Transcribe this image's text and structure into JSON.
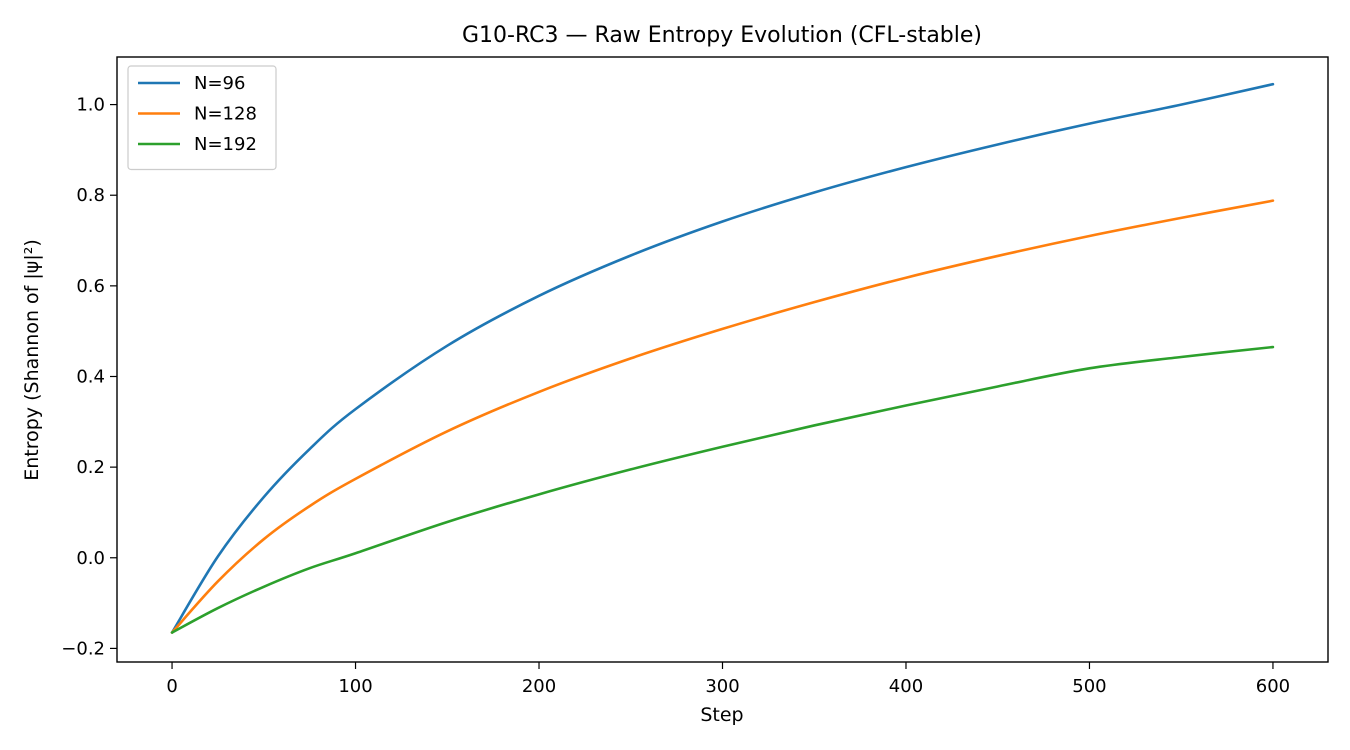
{
  "chart_data": {
    "type": "line",
    "title": "G10-RC3 — Raw Entropy Evolution (CFL-stable)",
    "xlabel": "Step",
    "ylabel": "Entropy (Shannon of |ψ|²)",
    "xlim": [
      -30,
      630
    ],
    "ylim": [
      -0.23,
      1.105
    ],
    "xticks": [
      0,
      100,
      200,
      300,
      400,
      500,
      600
    ],
    "yticks": [
      -0.2,
      0.0,
      0.2,
      0.4,
      0.6,
      0.8,
      1.0
    ],
    "xtick_labels": [
      "0",
      "100",
      "200",
      "300",
      "400",
      "500",
      "600"
    ],
    "ytick_labels": [
      "−0.2",
      "0.0",
      "0.2",
      "0.4",
      "0.6",
      "0.8",
      "1.0"
    ],
    "grid": false,
    "legend": "top-left",
    "x": [
      0,
      25,
      50,
      75,
      100,
      150,
      200,
      250,
      300,
      350,
      400,
      450,
      500,
      550,
      600
    ],
    "series": [
      {
        "name": "N=96",
        "color": "#1f77b4",
        "values": [
          -0.165,
          0.003,
          0.134,
          0.24,
          0.328,
          0.468,
          0.578,
          0.667,
          0.742,
          0.806,
          0.862,
          0.912,
          0.958,
          1.0,
          1.045
        ]
      },
      {
        "name": "N=128",
        "color": "#ff7f0e",
        "values": [
          -0.165,
          -0.052,
          0.041,
          0.114,
          0.174,
          0.279,
          0.366,
          0.44,
          0.505,
          0.564,
          0.618,
          0.666,
          0.71,
          0.75,
          0.788
        ]
      },
      {
        "name": "N=192",
        "color": "#2ca02c",
        "values": [
          -0.165,
          -0.111,
          -0.064,
          -0.023,
          0.01,
          0.079,
          0.14,
          0.195,
          0.245,
          0.292,
          0.336,
          0.378,
          0.418,
          0.443,
          0.465
        ]
      }
    ]
  }
}
